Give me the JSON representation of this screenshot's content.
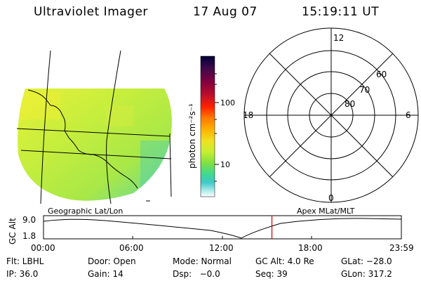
{
  "header": {
    "instrument": "Ultraviolet Imager",
    "date": "17 Aug 07",
    "time": "15:19:11 UT"
  },
  "colorbar": {
    "unit_label": "photon cm⁻²s⁻¹",
    "ticks": [
      "100",
      "10"
    ],
    "scale": "log",
    "colors": [
      "#000033",
      "#3a0a4a",
      "#800040",
      "#c0102a",
      "#ff2000",
      "#ff7a00",
      "#ffb000",
      "#f0e020",
      "#c8ee30",
      "#80e040",
      "#40d890",
      "#40c8c8",
      "#a0e8e8",
      "#ffffff"
    ]
  },
  "polar_plot": {
    "clock_labels": {
      "top": "12",
      "left": "18",
      "right": "6",
      "bottom": "0"
    },
    "lat_labels": [
      "60",
      "70",
      "80"
    ]
  },
  "map_labels": {
    "left": "Geographic Lat/Lon",
    "right": "Apex MLat/MLT"
  },
  "altitude_plot": {
    "ylabel": "GC Alt",
    "yticks": [
      "9.0",
      "1.8"
    ],
    "xticks": [
      "00:00",
      "06:00",
      "12:00",
      "18:00",
      "23:59"
    ],
    "current_time_marker_hours": 15.32,
    "marker_color": "#cc0000"
  },
  "status": {
    "row1": [
      {
        "key": "Flt",
        "text": "Flt: LBHL"
      },
      {
        "key": "Door",
        "text": "Door: Open"
      },
      {
        "key": "Mode",
        "text": "Mode: Normal"
      },
      {
        "key": "GCAlt",
        "text": "GC Alt: 4.0 Re"
      },
      {
        "key": "GLat",
        "text": "GLat: −28.0"
      }
    ],
    "row2": [
      {
        "key": "IP",
        "text": "IP: 36.0"
      },
      {
        "key": "Gain",
        "text": "Gain: 14"
      },
      {
        "key": "Dsp",
        "text": "Dsp:   −0.0"
      },
      {
        "key": "Seq",
        "text": "Seq: 39"
      },
      {
        "key": "GLon",
        "text": "GLon: 317.2"
      }
    ]
  }
}
